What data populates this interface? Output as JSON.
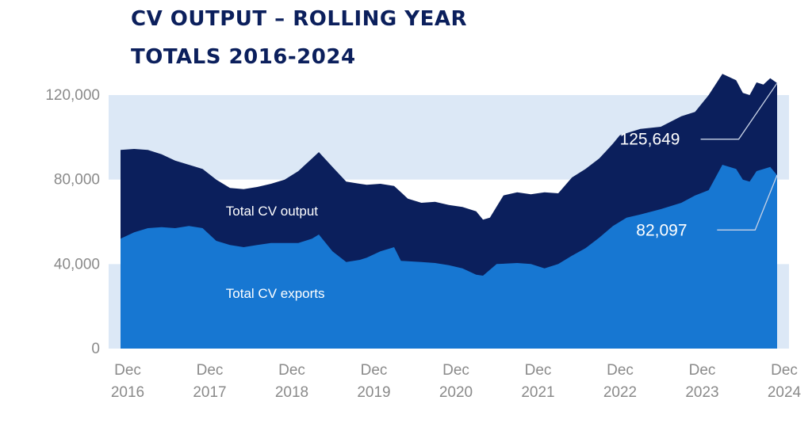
{
  "chart_data": {
    "type": "area",
    "title_lines": [
      "CV OUTPUT – ROLLING YEAR",
      "TOTALS 2016-2024"
    ],
    "ylim": [
      0,
      120000
    ],
    "y_ticks": [
      {
        "value": 0,
        "label": "0"
      },
      {
        "value": 40000,
        "label": "40,000"
      },
      {
        "value": 80000,
        "label": "80,000"
      },
      {
        "value": 120000,
        "label": "120,000"
      }
    ],
    "x_ticks": [
      {
        "value": 2016.917,
        "month": "Dec",
        "year": "2016"
      },
      {
        "value": 2017.917,
        "month": "Dec",
        "year": "2017"
      },
      {
        "value": 2018.917,
        "month": "Dec",
        "year": "2018"
      },
      {
        "value": 2019.917,
        "month": "Dec",
        "year": "2019"
      },
      {
        "value": 2020.917,
        "month": "Dec",
        "year": "2020"
      },
      {
        "value": 2021.917,
        "month": "Dec",
        "year": "2021"
      },
      {
        "value": 2022.917,
        "month": "Dec",
        "year": "2022"
      },
      {
        "value": 2023.917,
        "month": "Dec",
        "year": "2023"
      },
      {
        "value": 2024.917,
        "month": "Dec",
        "year": "2024"
      }
    ],
    "series": [
      {
        "name": "Total CV output",
        "color": "#0b1f5c",
        "points": [
          [
            2016.917,
            94000
          ],
          [
            2017.083,
            94500
          ],
          [
            2017.25,
            94000
          ],
          [
            2017.417,
            92000
          ],
          [
            2017.583,
            89000
          ],
          [
            2017.75,
            87000
          ],
          [
            2017.917,
            85000
          ],
          [
            2018.083,
            80000
          ],
          [
            2018.25,
            76000
          ],
          [
            2018.417,
            75500
          ],
          [
            2018.583,
            76500
          ],
          [
            2018.75,
            78000
          ],
          [
            2018.917,
            80000
          ],
          [
            2019.083,
            84000
          ],
          [
            2019.25,
            90000
          ],
          [
            2019.333,
            93000
          ],
          [
            2019.5,
            86000
          ],
          [
            2019.667,
            79000
          ],
          [
            2019.833,
            78000
          ],
          [
            2019.917,
            77500
          ],
          [
            2020.083,
            78000
          ],
          [
            2020.25,
            77000
          ],
          [
            2020.417,
            71000
          ],
          [
            2020.583,
            69000
          ],
          [
            2020.75,
            69500
          ],
          [
            2020.917,
            68000
          ],
          [
            2021.083,
            67000
          ],
          [
            2021.25,
            65000
          ],
          [
            2021.333,
            61000
          ],
          [
            2021.417,
            62000
          ],
          [
            2021.583,
            72500
          ],
          [
            2021.75,
            74000
          ],
          [
            2021.917,
            73000
          ],
          [
            2022.083,
            74000
          ],
          [
            2022.25,
            73500
          ],
          [
            2022.417,
            81000
          ],
          [
            2022.583,
            85000
          ],
          [
            2022.75,
            90000
          ],
          [
            2022.917,
            97000
          ],
          [
            2023.0,
            101000
          ],
          [
            2023.25,
            104000
          ],
          [
            2023.5,
            105000
          ],
          [
            2023.75,
            110000
          ],
          [
            2023.917,
            112000
          ],
          [
            2024.083,
            120000
          ],
          [
            2024.25,
            130000
          ],
          [
            2024.417,
            127000
          ],
          [
            2024.5,
            121000
          ],
          [
            2024.583,
            120000
          ],
          [
            2024.667,
            126000
          ],
          [
            2024.75,
            125000
          ],
          [
            2024.833,
            128000
          ],
          [
            2024.917,
            125649
          ]
        ]
      },
      {
        "name": "Total CV exports",
        "color": "#1777d2",
        "points": [
          [
            2016.917,
            52000
          ],
          [
            2017.083,
            55000
          ],
          [
            2017.25,
            57000
          ],
          [
            2017.417,
            57500
          ],
          [
            2017.583,
            57000
          ],
          [
            2017.75,
            58000
          ],
          [
            2017.917,
            57000
          ],
          [
            2018.083,
            51000
          ],
          [
            2018.25,
            49000
          ],
          [
            2018.417,
            48000
          ],
          [
            2018.583,
            49000
          ],
          [
            2018.75,
            50000
          ],
          [
            2018.917,
            50000
          ],
          [
            2019.083,
            50000
          ],
          [
            2019.25,
            52000
          ],
          [
            2019.333,
            54000
          ],
          [
            2019.5,
            46000
          ],
          [
            2019.667,
            41000
          ],
          [
            2019.833,
            42000
          ],
          [
            2019.917,
            43000
          ],
          [
            2020.083,
            46000
          ],
          [
            2020.25,
            48000
          ],
          [
            2020.333,
            41500
          ],
          [
            2020.583,
            41000
          ],
          [
            2020.75,
            40500
          ],
          [
            2020.917,
            39500
          ],
          [
            2021.083,
            38000
          ],
          [
            2021.25,
            35000
          ],
          [
            2021.333,
            34500
          ],
          [
            2021.5,
            40000
          ],
          [
            2021.75,
            40500
          ],
          [
            2021.917,
            40000
          ],
          [
            2022.083,
            38000
          ],
          [
            2022.25,
            40000
          ],
          [
            2022.417,
            44000
          ],
          [
            2022.583,
            47500
          ],
          [
            2022.75,
            52500
          ],
          [
            2022.917,
            58000
          ],
          [
            2023.083,
            62000
          ],
          [
            2023.25,
            63500
          ],
          [
            2023.5,
            66000
          ],
          [
            2023.75,
            69000
          ],
          [
            2023.917,
            72500
          ],
          [
            2024.083,
            75000
          ],
          [
            2024.25,
            87000
          ],
          [
            2024.417,
            85000
          ],
          [
            2024.5,
            80000
          ],
          [
            2024.583,
            79000
          ],
          [
            2024.667,
            84000
          ],
          [
            2024.833,
            86000
          ],
          [
            2024.917,
            82097
          ]
        ]
      }
    ],
    "series_labels": [
      {
        "text": "Total CV output",
        "x": 2018.2,
        "y": 63000
      },
      {
        "text": "Total CV exports",
        "x": 2018.2,
        "y": 24000
      }
    ],
    "annotations": [
      {
        "text": "125,649",
        "value": 125649,
        "x": 2024.917,
        "label_x": 2023.0,
        "label_y": 96500
      },
      {
        "text": "82,097",
        "value": 82097,
        "x": 2024.917,
        "label_x": 2023.2,
        "label_y": 53500
      }
    ],
    "background_bands": [
      {
        "from": 0,
        "to": 40000,
        "color": "#dce8f6"
      },
      {
        "from": 80000,
        "to": 120000,
        "color": "#dce8f6"
      }
    ],
    "grid": false,
    "legend": "none"
  }
}
